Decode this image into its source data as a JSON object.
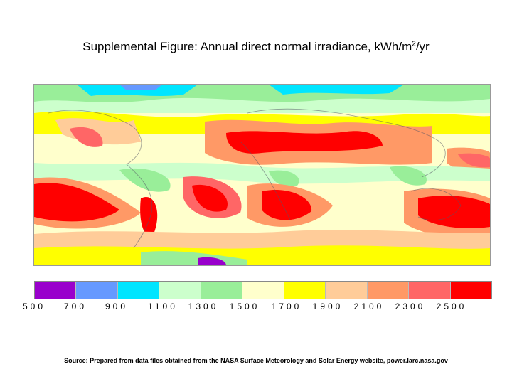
{
  "title": {
    "main": "Supplemental Figure: Annual direct normal irradiance, kWh/m",
    "superscript": "2",
    "suffix": "/yr"
  },
  "legend": {
    "ticks": [
      "500",
      "700",
      "900",
      "1100",
      "1300",
      "1500",
      "1700",
      "1900",
      "2100",
      "2300",
      "2500"
    ],
    "colors": [
      "#9900cc",
      "#6699ff",
      "#00e5ff",
      "#ccffcc",
      "#99ee99",
      "#ffffcc",
      "#ffff00",
      "#ffcc99",
      "#ff9966",
      "#ff6666",
      "#ff0000"
    ]
  },
  "source": "Source: Prepared from data files obtained from the NASA Surface Meteorology and Solar Energy website, power.larc.nasa.gov"
}
